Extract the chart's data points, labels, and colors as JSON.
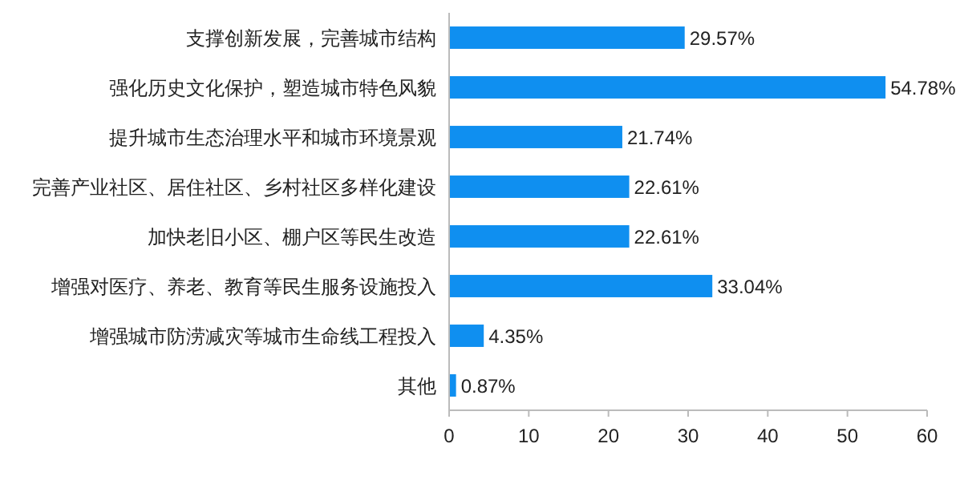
{
  "chart_data": {
    "type": "bar",
    "orientation": "horizontal",
    "categories": [
      "支撑创新发展，完善城市结构",
      "强化历史文化保护，塑造城市特色风貌",
      "提升城市生态治理水平和城市环境景观",
      "完善产业社区、居住社区、乡村社区多样化建设",
      "加快老旧小区、棚户区等民生改造",
      "增强对医疗、养老、教育等民生服务设施投入",
      "增强城市防涝减灾等城市生命线工程投入",
      "其他"
    ],
    "values": [
      29.57,
      54.78,
      21.74,
      22.61,
      22.61,
      33.04,
      4.35,
      0.87
    ],
    "value_labels": [
      "29.57%",
      "54.78%",
      "21.74%",
      "22.61%",
      "22.61%",
      "33.04%",
      "4.35%",
      "0.87%"
    ],
    "color": "#0f8ff0",
    "xlim": [
      0,
      60
    ],
    "xticks": [
      0,
      10,
      20,
      30,
      40,
      50,
      60
    ],
    "grid": false
  }
}
